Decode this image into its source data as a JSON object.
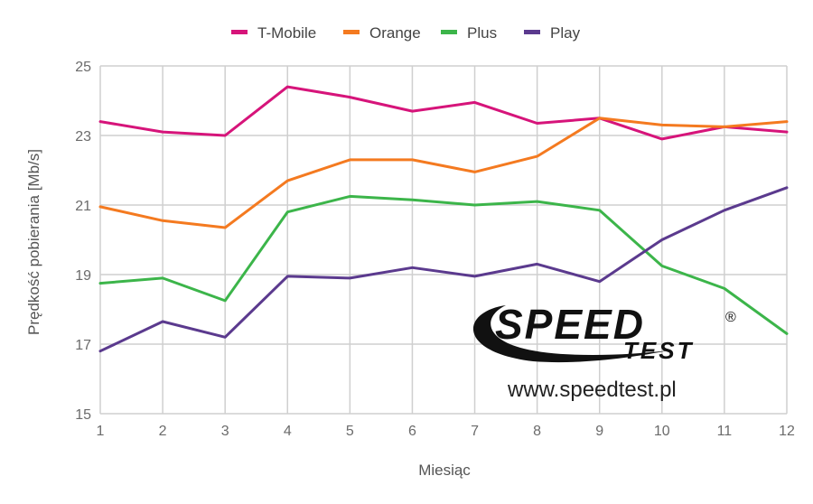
{
  "chart_data": {
    "type": "line",
    "xlabel": "Miesiąc",
    "ylabel": "Prędkość pobierania [Mb/s]",
    "x": [
      1,
      2,
      3,
      4,
      5,
      6,
      7,
      8,
      9,
      10,
      11,
      12
    ],
    "xlim": [
      1,
      12
    ],
    "ylim": [
      15,
      25
    ],
    "yticks": [
      15,
      17,
      19,
      21,
      23,
      25
    ],
    "grid": true,
    "legend_position": "top-center",
    "series": [
      {
        "name": "T-Mobile",
        "color": "#d6147a",
        "values": [
          23.4,
          23.1,
          23.0,
          24.4,
          24.1,
          23.7,
          23.95,
          23.35,
          23.5,
          22.9,
          23.25,
          23.1
        ]
      },
      {
        "name": "Orange",
        "color": "#f47a20",
        "values": [
          20.95,
          20.55,
          20.35,
          21.7,
          22.3,
          22.3,
          21.95,
          22.4,
          23.5,
          23.3,
          23.25,
          23.4
        ]
      },
      {
        "name": "Plus",
        "color": "#3cb54a",
        "values": [
          18.75,
          18.9,
          18.25,
          20.8,
          21.25,
          21.15,
          21.0,
          21.1,
          20.85,
          19.25,
          18.6,
          17.3
        ]
      },
      {
        "name": "Play",
        "color": "#5b3a8e",
        "values": [
          16.8,
          17.65,
          17.2,
          18.95,
          18.9,
          19.2,
          18.95,
          19.3,
          18.8,
          20.0,
          20.85,
          21.5
        ]
      }
    ]
  },
  "watermark": {
    "logo_text_top": "SPEED",
    "logo_text_bottom": "TEST",
    "registered_mark": "®",
    "url": "www.speedtest.pl"
  }
}
